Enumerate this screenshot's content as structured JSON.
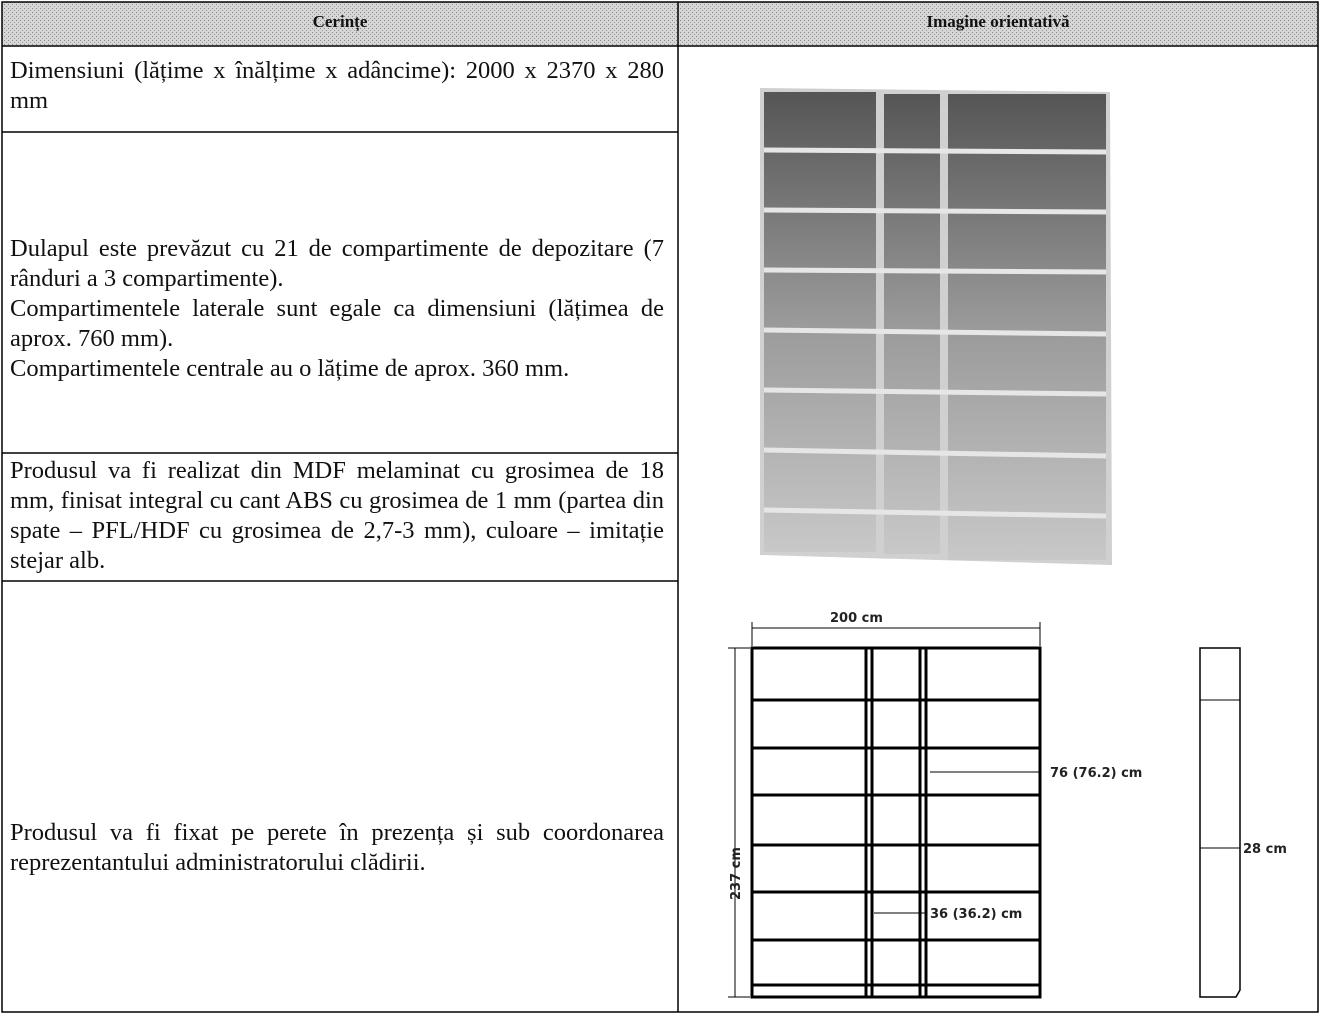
{
  "table": {
    "header": [
      "Cerințe",
      "Imagine orientativă"
    ],
    "rows": [
      [
        "Dimensiuni (lățime x înălțime x adâncime): 2000 x 2370 x 280 mm"
      ],
      [
        "Dulapul este prevăzut cu 21 de compartimente de depozitare (7 rânduri a 3 compartimente).",
        "Compartimentele laterale sunt egale ca dimensiuni (lățimea de aprox. 760 mm).",
        "Compartimentele centrale au o lățime de aprox. 360 mm."
      ],
      [
        "Produsul va fi realizat din  MDF melaminat cu grosimea de 18 mm, finisat integral cu cant ABS cu grosimea de 1 mm (partea din spate – PFL/HDF cu grosimea de 2,7-3 mm), culoare – imitație stejar alb."
      ],
      [
        "Produsul va fi fixat pe perete în prezența și sub coordonarea reprezentantului administratorului clădirii."
      ]
    ]
  },
  "drawing": {
    "width": "200 cm",
    "height": "237 cm",
    "side_width": "76 (76.2) cm",
    "middle_width": "36 (36.2) cm",
    "depth": "28 cm"
  }
}
